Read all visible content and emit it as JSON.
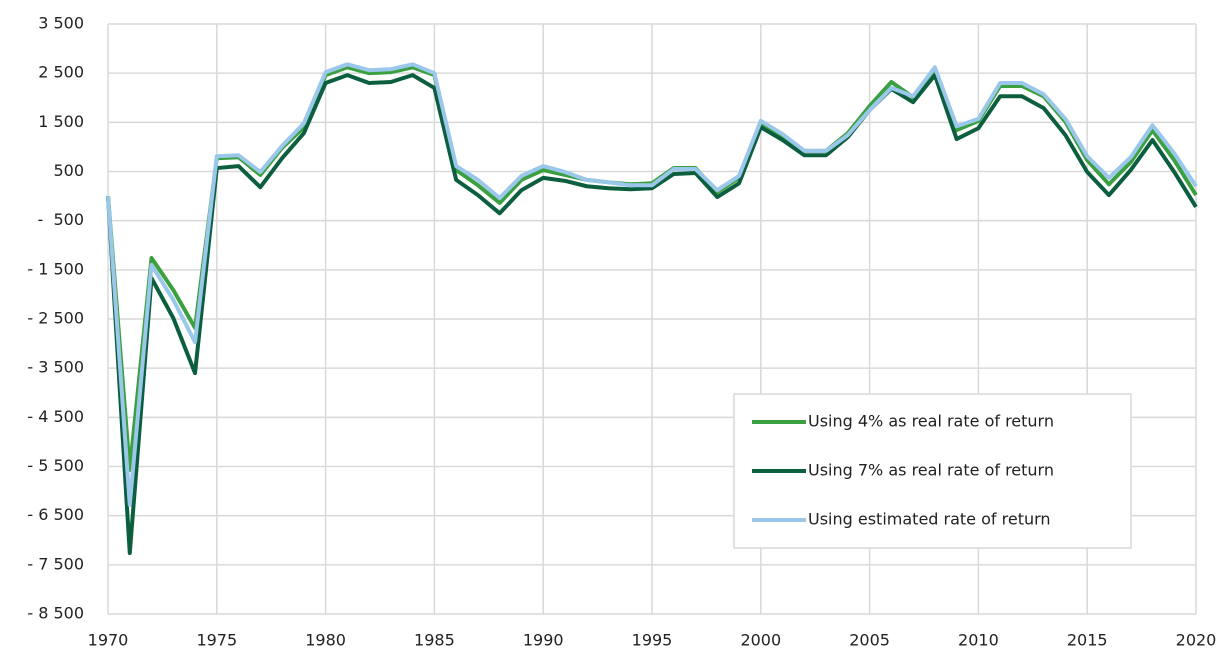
{
  "chart_data": {
    "type": "line",
    "x": [
      1970,
      1971,
      1972,
      1973,
      1974,
      1975,
      1976,
      1977,
      1978,
      1979,
      1980,
      1981,
      1982,
      1983,
      1984,
      1985,
      1986,
      1987,
      1988,
      1989,
      1990,
      1991,
      1992,
      1993,
      1994,
      1995,
      1996,
      1997,
      1998,
      1999,
      2000,
      2001,
      2002,
      2003,
      2004,
      2005,
      2006,
      2007,
      2008,
      2009,
      2010,
      2011,
      2012,
      2013,
      2014,
      2015,
      2016,
      2017,
      2018,
      2019,
      2020
    ],
    "series": [
      {
        "name": "Using 4% as real rate of return",
        "color": "#3aa040",
        "values": [
          0,
          -5570,
          -1260,
          -1910,
          -2680,
          770,
          790,
          430,
          980,
          1400,
          2460,
          2620,
          2500,
          2520,
          2620,
          2460,
          530,
          220,
          -140,
          330,
          530,
          430,
          330,
          280,
          240,
          260,
          570,
          570,
          80,
          370,
          1480,
          1220,
          920,
          920,
          1280,
          1830,
          2320,
          2010,
          2600,
          1340,
          1530,
          2240,
          2240,
          2030,
          1510,
          730,
          240,
          690,
          1340,
          730,
          20
        ]
      },
      {
        "name": "Using 7% as real rate of return",
        "color": "#0b5e3e",
        "values": [
          0,
          -7260,
          -1670,
          -2480,
          -3600,
          570,
          610,
          180,
          770,
          1280,
          2300,
          2460,
          2300,
          2320,
          2460,
          2200,
          330,
          20,
          -350,
          120,
          370,
          310,
          200,
          160,
          140,
          160,
          450,
          470,
          -20,
          260,
          1400,
          1140,
          830,
          830,
          1200,
          1750,
          2180,
          1910,
          2460,
          1160,
          1380,
          2030,
          2030,
          1790,
          1240,
          490,
          20,
          530,
          1140,
          490,
          -220
        ]
      },
      {
        "name": "Using estimated rate of return",
        "color": "#9ac7ea",
        "values": [
          0,
          -6280,
          -1400,
          -2110,
          -2970,
          810,
          830,
          490,
          1020,
          1480,
          2520,
          2680,
          2560,
          2580,
          2680,
          2500,
          610,
          330,
          -40,
          410,
          610,
          490,
          330,
          280,
          220,
          220,
          550,
          550,
          120,
          410,
          1530,
          1260,
          920,
          920,
          1240,
          1750,
          2200,
          2030,
          2620,
          1420,
          1570,
          2300,
          2300,
          2070,
          1570,
          810,
          370,
          790,
          1440,
          870,
          200
        ]
      }
    ],
    "xlim": [
      1970,
      2020
    ],
    "xticks": [
      1970,
      1975,
      1980,
      1985,
      1990,
      1995,
      2000,
      2005,
      2010,
      2015,
      2020
    ],
    "ylim": [
      -8500,
      3500
    ],
    "yticks": [
      {
        "value": 3500,
        "label": "3 500"
      },
      {
        "value": 2500,
        "label": "2 500"
      },
      {
        "value": 1500,
        "label": "1 500"
      },
      500,
      {
        "value": -500,
        "label": "-  500"
      },
      {
        "value": -1500,
        "label": "- 1 500"
      },
      {
        "value": -2500,
        "label": "- 2 500"
      },
      {
        "value": -3500,
        "label": "- 3 500"
      },
      {
        "value": -4500,
        "label": "- 4 500"
      },
      {
        "value": -5500,
        "label": "- 5 500"
      },
      {
        "value": -6500,
        "label": "- 6 500"
      },
      {
        "value": -7500,
        "label": "- 7 500"
      },
      {
        "value": -8500,
        "label": "- 8 500"
      }
    ],
    "grid": true,
    "legend": "right"
  }
}
